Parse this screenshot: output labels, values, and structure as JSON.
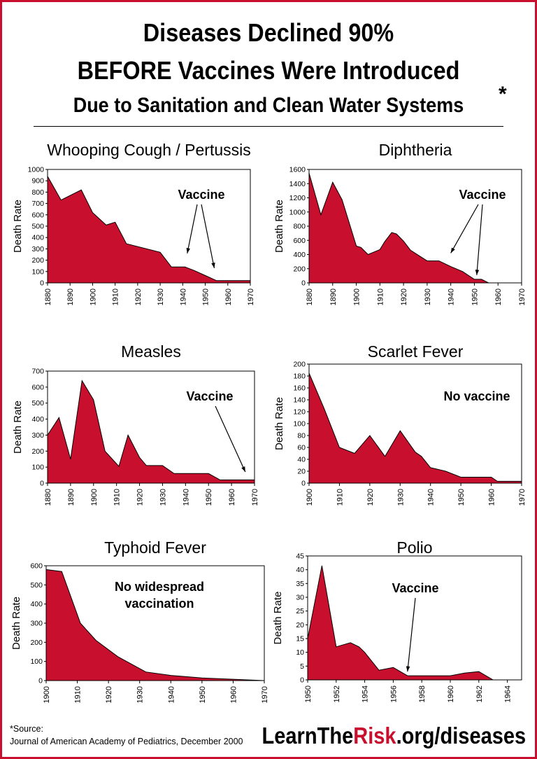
{
  "headline": {
    "line1": "Diseases Declined 90%",
    "line2": "BEFORE Vaccines Were Introduced",
    "line3": "Due to Sanitation and Clean Water Systems",
    "asterisk": "*"
  },
  "source": {
    "label": "*Source:",
    "text": "Journal of American Academy of Pediatrics, December 2000"
  },
  "brand": {
    "prefix": "LearnThe",
    "highlight": "Risk",
    "suffix": ".org/diseases"
  },
  "colors": {
    "fill": "#c8102e",
    "frame": "#c8102e",
    "text": "#000000"
  },
  "chart_data": [
    {
      "type": "area",
      "title": "Whooping Cough / Pertussis",
      "ylabel": "Death Rate",
      "xlim": [
        1880,
        1970
      ],
      "ylim": [
        0,
        1000
      ],
      "xticks": [
        1880,
        1890,
        1900,
        1910,
        1920,
        1930,
        1940,
        1950,
        1960,
        1970
      ],
      "yticks": [
        0,
        100,
        200,
        300,
        400,
        500,
        600,
        700,
        800,
        900,
        1000
      ],
      "x": [
        1880,
        1886,
        1895,
        1900,
        1906,
        1910,
        1915,
        1930,
        1935,
        1941,
        1945,
        1950,
        1955,
        1970
      ],
      "y": [
        940,
        730,
        820,
        620,
        510,
        535,
        345,
        270,
        140,
        140,
        110,
        65,
        20,
        20
      ],
      "annotation": {
        "text": "Vaccine",
        "targets": [
          [
            1942,
            260
          ],
          [
            1954,
            130
          ]
        ]
      }
    },
    {
      "type": "area",
      "title": "Diphtheria",
      "ylabel": "Death Rate",
      "xlim": [
        1880,
        1970
      ],
      "ylim": [
        0,
        1600
      ],
      "xticks": [
        1880,
        1890,
        1900,
        1910,
        1920,
        1930,
        1940,
        1950,
        1960,
        1970
      ],
      "yticks": [
        0,
        200,
        400,
        600,
        800,
        1000,
        1200,
        1400,
        1600
      ],
      "x": [
        1880,
        1885,
        1890,
        1894,
        1900,
        1902,
        1905,
        1910,
        1912,
        1915,
        1917,
        1920,
        1923,
        1930,
        1935,
        1940,
        1945,
        1950,
        1953,
        1956,
        1970
      ],
      "y": [
        1550,
        960,
        1420,
        1170,
        520,
        500,
        400,
        470,
        580,
        710,
        690,
        590,
        460,
        310,
        310,
        230,
        160,
        50,
        50,
        0,
        0
      ],
      "annotation": {
        "text": "Vaccine",
        "targets": [
          [
            1940,
            420
          ],
          [
            1951,
            110
          ]
        ]
      }
    },
    {
      "type": "area",
      "title": "Measles",
      "ylabel": "Death Rate",
      "xlim": [
        1880,
        1970
      ],
      "ylim": [
        0,
        700
      ],
      "xticks": [
        1880,
        1890,
        1900,
        1910,
        1920,
        1930,
        1940,
        1950,
        1960,
        1970
      ],
      "yticks": [
        0,
        100,
        200,
        300,
        400,
        500,
        600,
        700
      ],
      "x": [
        1880,
        1885,
        1890,
        1895,
        1900,
        1905,
        1911,
        1915,
        1920,
        1923,
        1930,
        1935,
        1940,
        1950,
        1955,
        1970
      ],
      "y": [
        300,
        410,
        150,
        640,
        520,
        200,
        105,
        300,
        160,
        110,
        110,
        60,
        60,
        60,
        20,
        20
      ],
      "annotation": {
        "text": "Vaccine",
        "targets": [
          [
            1966,
            70
          ]
        ]
      }
    },
    {
      "type": "area",
      "title": "Scarlet Fever",
      "ylabel": "Death Rate",
      "xlim": [
        1900,
        1970
      ],
      "ylim": [
        0,
        200
      ],
      "xticks": [
        1900,
        1910,
        1920,
        1930,
        1940,
        1950,
        1960,
        1970
      ],
      "yticks": [
        0,
        20,
        40,
        60,
        80,
        100,
        120,
        140,
        160,
        180,
        200
      ],
      "x": [
        1900,
        1905,
        1910,
        1915,
        1920,
        1925,
        1930,
        1935,
        1937,
        1940,
        1945,
        1950,
        1960,
        1962,
        1970
      ],
      "y": [
        185,
        125,
        60,
        50,
        80,
        45,
        88,
        52,
        45,
        26,
        20,
        10,
        10,
        3,
        3
      ],
      "annotation": {
        "text": "No vaccine",
        "targets": []
      }
    },
    {
      "type": "area",
      "title": "Typhoid Fever",
      "ylabel": "Death Rate",
      "xlim": [
        1900,
        1970
      ],
      "ylim": [
        0,
        600
      ],
      "xticks": [
        1900,
        1910,
        1920,
        1930,
        1940,
        1950,
        1960,
        1970
      ],
      "yticks": [
        0,
        100,
        200,
        300,
        400,
        500,
        600
      ],
      "x": [
        1900,
        1905,
        1911,
        1916,
        1923,
        1932,
        1940,
        1950,
        1960,
        1970
      ],
      "y": [
        580,
        570,
        300,
        210,
        125,
        45,
        27,
        14,
        7,
        0
      ],
      "annotation": {
        "text": "No widespread\nvaccination",
        "targets": []
      }
    },
    {
      "type": "area",
      "title": "Polio",
      "ylabel": "Death Rate",
      "xlim": [
        1950,
        1965
      ],
      "ylim": [
        0,
        45
      ],
      "xticks": [
        1950,
        1952,
        1954,
        1956,
        1958,
        1960,
        1962,
        1964
      ],
      "yticks": [
        0,
        5,
        10,
        15,
        20,
        25,
        30,
        35,
        40,
        45
      ],
      "x": [
        1950,
        1951,
        1952,
        1953,
        1953.6,
        1954,
        1955,
        1956,
        1957,
        1958,
        1960,
        1961,
        1962,
        1963,
        1965
      ],
      "y": [
        15,
        41.5,
        12,
        13.5,
        12,
        10,
        3.5,
        4.5,
        1.5,
        1.5,
        1.5,
        2.5,
        3,
        0,
        0
      ],
      "annotation": {
        "text": "Vaccine",
        "targets": [
          [
            1957,
            3
          ]
        ]
      }
    }
  ]
}
